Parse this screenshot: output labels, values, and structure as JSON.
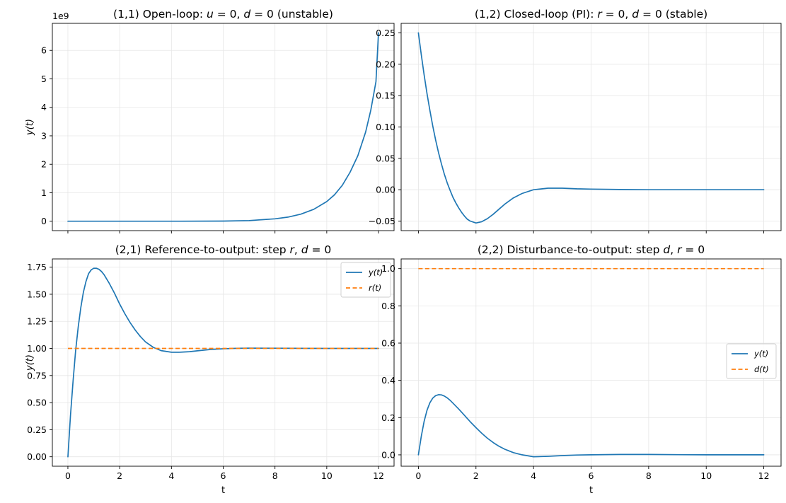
{
  "colors": {
    "series_blue": "#1f77b4",
    "series_orange": "#ff7f0e",
    "grid": "#e6e6e6",
    "frame": "#000000"
  },
  "chart_data": [
    {
      "id": "p11",
      "type": "line",
      "title_parts": [
        "(1,1) Open-loop: ",
        "u",
        " = 0, ",
        "d",
        " = 0 (unstable)"
      ],
      "xlabel": "",
      "ylabel": "y(t)",
      "xlim": [
        -0.6,
        12.6
      ],
      "ylim": [
        -0.33,
        6.95
      ],
      "xticks": [
        0,
        2,
        4,
        6,
        8,
        10,
        12
      ],
      "show_xticklabels": false,
      "yticks": [
        0,
        1,
        2,
        3,
        4,
        5,
        6
      ],
      "yticklabels": [
        "0",
        "1",
        "2",
        "3",
        "4",
        "5",
        "6"
      ],
      "y_multiplier": "1e9",
      "series": [
        {
          "name": "y(t)",
          "style": "solid",
          "color": "#1f77b4",
          "x": [
            0,
            2,
            4,
            6,
            7,
            8,
            8.5,
            9,
            9.5,
            10,
            10.3,
            10.6,
            10.9,
            11.2,
            11.5,
            11.7,
            11.9,
            12
          ],
          "y": [
            0,
            1e-05,
            0.0003,
            0.006,
            0.023,
            0.085,
            0.145,
            0.25,
            0.42,
            0.69,
            0.93,
            1.26,
            1.72,
            2.3,
            3.13,
            3.9,
            4.9,
            6.62
          ]
        }
      ],
      "legend": null
    },
    {
      "id": "p12",
      "type": "line",
      "title_parts": [
        "(1,2) Closed-loop (PI): ",
        "r",
        " = 0, ",
        "d",
        " = 0 (stable)"
      ],
      "xlabel": "",
      "ylabel": "",
      "xlim": [
        -0.6,
        12.6
      ],
      "ylim": [
        -0.0652,
        0.2652
      ],
      "xticks": [
        0,
        2,
        4,
        6,
        8,
        10,
        12
      ],
      "show_xticklabels": false,
      "yticks": [
        -0.05,
        0,
        0.05,
        0.1,
        0.15,
        0.2,
        0.25
      ],
      "yticklabels": [
        "−0.05",
        "0.00",
        "0.05",
        "0.10",
        "0.15",
        "0.20",
        "0.25"
      ],
      "y_multiplier": "",
      "series": [
        {
          "name": "y(t)",
          "style": "solid",
          "color": "#1f77b4",
          "x": [
            0,
            0.1,
            0.2,
            0.3,
            0.4,
            0.5,
            0.6,
            0.7,
            0.8,
            0.9,
            1.0,
            1.1,
            1.2,
            1.3,
            1.4,
            1.5,
            1.6,
            1.7,
            1.8,
            2.0,
            2.2,
            2.4,
            2.6,
            2.8,
            3.0,
            3.3,
            3.6,
            4.0,
            4.5,
            5.0,
            5.5,
            6.0,
            7.0,
            8.0,
            9.0,
            10.0,
            11.0,
            12.0
          ],
          "y": [
            0.25,
            0.215,
            0.183,
            0.153,
            0.126,
            0.101,
            0.079,
            0.059,
            0.041,
            0.025,
            0.011,
            -0.001,
            -0.012,
            -0.021,
            -0.029,
            -0.036,
            -0.042,
            -0.047,
            -0.05,
            -0.053,
            -0.051,
            -0.046,
            -0.039,
            -0.031,
            -0.023,
            -0.013,
            -0.006,
            0.0,
            0.0025,
            0.0025,
            0.0015,
            0.001,
            0.0003,
            0.0,
            0.0,
            0.0,
            0.0,
            0.0
          ]
        }
      ],
      "legend": null
    },
    {
      "id": "p21",
      "type": "line",
      "title_parts": [
        "(2,1) Reference-to-output: step ",
        "r",
        ", ",
        "d",
        " = 0"
      ],
      "xlabel": "t",
      "ylabel": "y(t)",
      "xlim": [
        -0.6,
        12.6
      ],
      "ylim": [
        -0.087,
        1.826
      ],
      "xticks": [
        0,
        2,
        4,
        6,
        8,
        10,
        12
      ],
      "show_xticklabels": true,
      "xticklabels": [
        "0",
        "2",
        "4",
        "6",
        "8",
        "10",
        "12"
      ],
      "yticks": [
        0,
        0.25,
        0.5,
        0.75,
        1.0,
        1.25,
        1.5,
        1.75
      ],
      "yticklabels": [
        "0.00",
        "0.25",
        "0.50",
        "0.75",
        "1.00",
        "1.25",
        "1.50",
        "1.75"
      ],
      "y_multiplier": "",
      "series": [
        {
          "name": "y(t)",
          "style": "solid",
          "color": "#1f77b4",
          "x": [
            0,
            0.1,
            0.2,
            0.3,
            0.4,
            0.5,
            0.6,
            0.7,
            0.8,
            0.9,
            1.0,
            1.1,
            1.2,
            1.3,
            1.4,
            1.6,
            1.8,
            2.0,
            2.2,
            2.4,
            2.6,
            2.8,
            3.0,
            3.3,
            3.6,
            4.0,
            4.3,
            4.7,
            5.0,
            5.5,
            6.0,
            6.5,
            7.0,
            8.0,
            9.0,
            10.0,
            11.0,
            12.0
          ],
          "y": [
            0,
            0.38,
            0.7,
            0.98,
            1.2,
            1.38,
            1.52,
            1.62,
            1.69,
            1.725,
            1.74,
            1.74,
            1.73,
            1.71,
            1.68,
            1.6,
            1.51,
            1.41,
            1.32,
            1.24,
            1.17,
            1.11,
            1.06,
            1.01,
            0.98,
            0.965,
            0.965,
            0.97,
            0.978,
            0.99,
            0.997,
            1.001,
            1.003,
            1.002,
            1.001,
            1.0,
            1.0,
            1.0
          ]
        },
        {
          "name": "r(t)",
          "style": "dashed",
          "color": "#ff7f0e",
          "x": [
            0,
            12
          ],
          "y": [
            1.0,
            1.0
          ]
        }
      ],
      "legend": {
        "location": "top-right",
        "entries": [
          "y(t)",
          "r(t)"
        ]
      }
    },
    {
      "id": "p22",
      "type": "line",
      "title_parts": [
        "(2,2) Disturbance-to-output: step ",
        "d",
        ", ",
        "r",
        " = 0"
      ],
      "xlabel": "t",
      "ylabel": "",
      "xlim": [
        -0.6,
        12.6
      ],
      "ylim": [
        -0.061,
        1.052
      ],
      "xticks": [
        0,
        2,
        4,
        6,
        8,
        10,
        12
      ],
      "show_xticklabels": true,
      "xticklabels": [
        "0",
        "2",
        "4",
        "6",
        "8",
        "10",
        "12"
      ],
      "yticks": [
        0,
        0.2,
        0.4,
        0.6,
        0.8,
        1.0
      ],
      "yticklabels": [
        "0.0",
        "0.2",
        "0.4",
        "0.6",
        "0.8",
        "1.0"
      ],
      "y_multiplier": "",
      "series": [
        {
          "name": "y(t)",
          "style": "solid",
          "color": "#1f77b4",
          "x": [
            0,
            0.1,
            0.2,
            0.3,
            0.4,
            0.5,
            0.6,
            0.7,
            0.8,
            0.9,
            1.0,
            1.1,
            1.2,
            1.4,
            1.6,
            1.8,
            2.0,
            2.2,
            2.4,
            2.6,
            2.8,
            3.0,
            3.3,
            3.6,
            4.0,
            4.5,
            5.0,
            5.5,
            6.0,
            7.0,
            8.0,
            9.0,
            10.0,
            11.0,
            12.0
          ],
          "y": [
            0,
            0.1,
            0.18,
            0.24,
            0.28,
            0.305,
            0.318,
            0.323,
            0.322,
            0.316,
            0.306,
            0.293,
            0.278,
            0.246,
            0.212,
            0.178,
            0.146,
            0.116,
            0.089,
            0.066,
            0.046,
            0.03,
            0.012,
            0.0,
            -0.01,
            -0.008,
            -0.004,
            -0.001,
            0.0,
            0.002,
            0.002,
            0.001,
            0.0,
            0.0,
            0.0
          ]
        },
        {
          "name": "d(t)",
          "style": "dashed",
          "color": "#ff7f0e",
          "x": [
            0,
            12
          ],
          "y": [
            1.0,
            1.0
          ]
        }
      ],
      "legend": {
        "location": "center-right",
        "entries": [
          "y(t)",
          "d(t)"
        ]
      }
    }
  ]
}
